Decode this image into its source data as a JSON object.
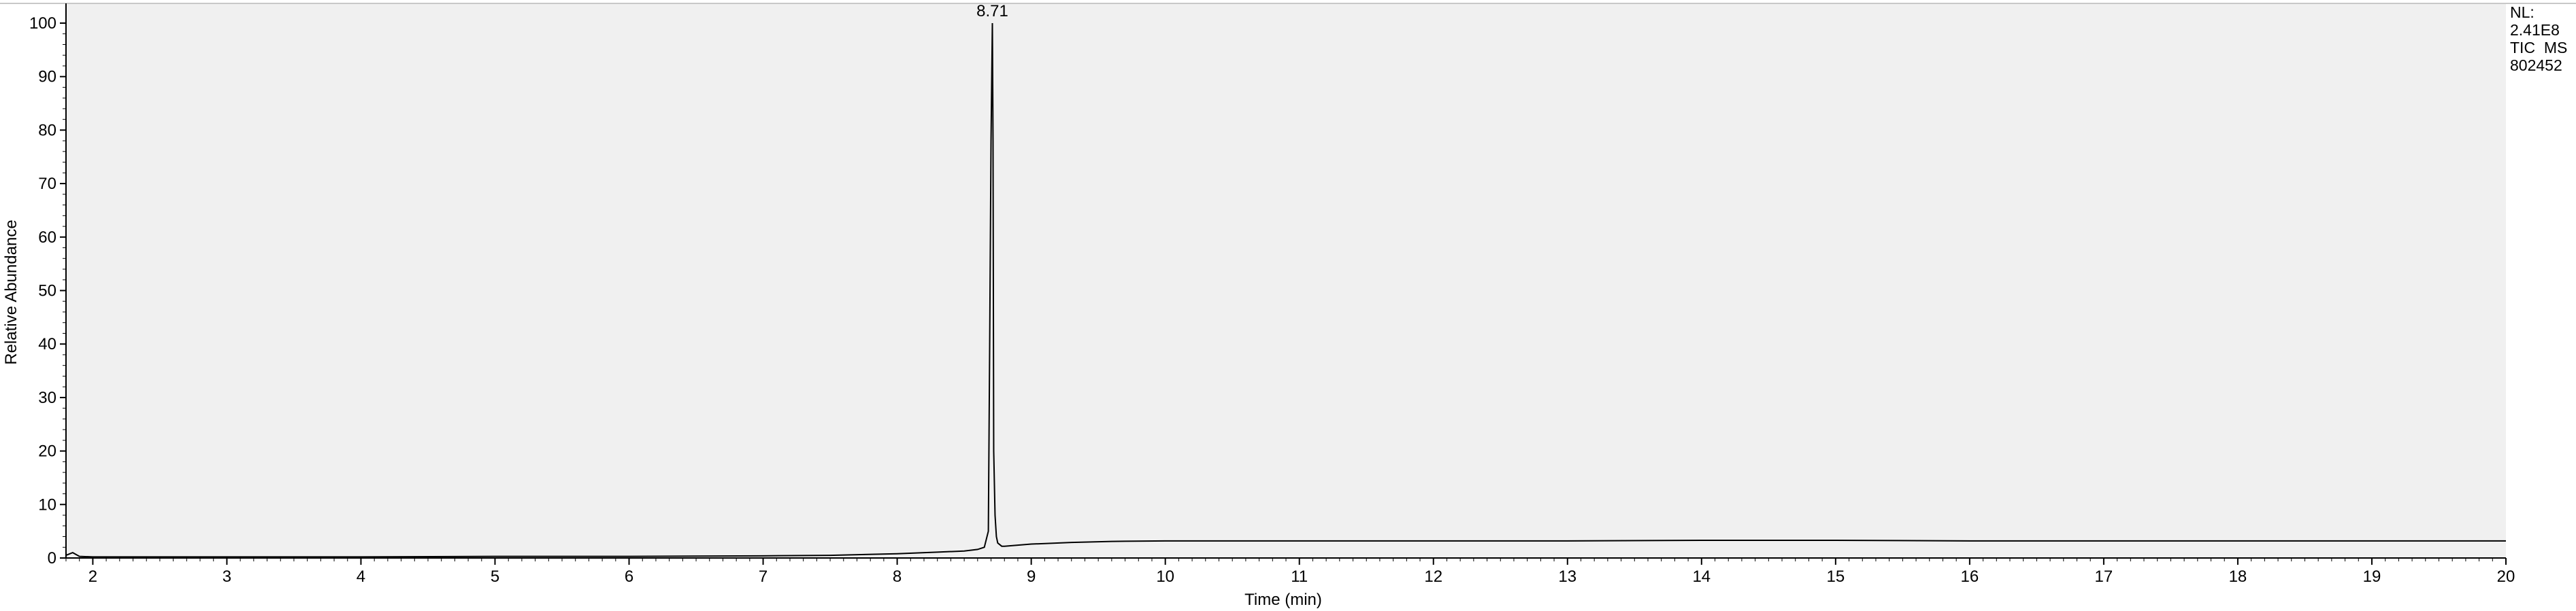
{
  "chart_data": {
    "type": "line",
    "title": "",
    "xlabel": "Time (min)",
    "ylabel": "Relative Abundance",
    "xlim": [
      1.8,
      20
    ],
    "ylim": [
      0,
      100
    ],
    "x_ticks": [
      2,
      3,
      4,
      5,
      6,
      7,
      8,
      9,
      10,
      11,
      12,
      13,
      14,
      15,
      16,
      17,
      18,
      19,
      20
    ],
    "y_ticks": [
      0,
      10,
      20,
      30,
      40,
      50,
      60,
      70,
      80,
      90,
      100
    ],
    "grid": false,
    "legend": "none",
    "background_color": "#f0f0f0",
    "line_color": "#000000",
    "annotations": [
      {
        "text": "8.71",
        "x": 8.71,
        "y": 100
      }
    ],
    "info_box": {
      "lines": [
        "NL:",
        "2.41E8",
        "TIC  MS",
        "802452"
      ]
    },
    "series": [
      {
        "x": [
          1.8,
          1.85,
          1.9,
          2.0,
          2.5,
          3.0,
          4.0,
          5.0,
          6.0,
          7.0,
          7.5,
          8.0,
          8.3,
          8.5,
          8.6,
          8.65,
          8.68,
          8.69,
          8.7,
          8.71,
          8.715,
          8.72,
          8.73,
          8.74,
          8.75,
          8.78,
          8.8,
          8.9,
          9.0,
          9.3,
          9.6,
          10.0,
          11.0,
          12.0,
          13.0,
          14.0,
          15.0,
          16.0,
          17.0,
          18.0,
          19.0,
          20.0
        ],
        "values": [
          0.5,
          1.0,
          0.3,
          0.2,
          0.2,
          0.2,
          0.2,
          0.3,
          0.3,
          0.4,
          0.5,
          0.8,
          1.1,
          1.3,
          1.6,
          2.0,
          5.0,
          40.0,
          78.0,
          100.0,
          78.0,
          20.0,
          8.0,
          4.0,
          2.8,
          2.2,
          2.2,
          2.4,
          2.6,
          2.9,
          3.1,
          3.2,
          3.2,
          3.2,
          3.2,
          3.3,
          3.3,
          3.2,
          3.2,
          3.2,
          3.2,
          3.2
        ]
      }
    ]
  }
}
